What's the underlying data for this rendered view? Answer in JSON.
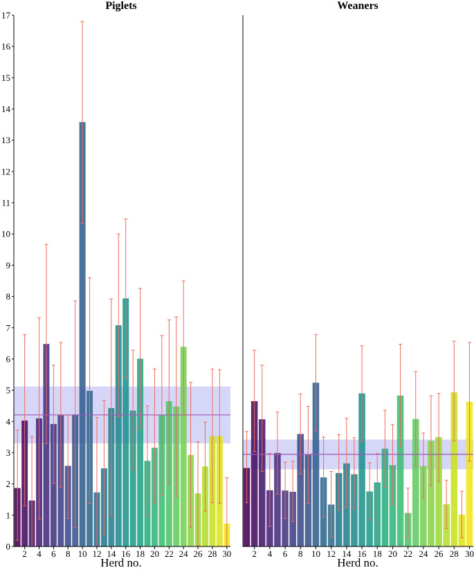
{
  "chart_data": [
    {
      "type": "bar",
      "title": "Piglets",
      "xlabel": "Herd no.",
      "ylabel": "",
      "ylim": [
        0,
        17
      ],
      "yticks": [
        0,
        1,
        2,
        3,
        4,
        5,
        6,
        7,
        8,
        9,
        10,
        11,
        12,
        13,
        14,
        15,
        16,
        17
      ],
      "x": [
        1,
        2,
        3,
        4,
        5,
        6,
        7,
        8,
        9,
        10,
        11,
        12,
        13,
        14,
        15,
        16,
        17,
        18,
        19,
        20,
        21,
        22,
        23,
        24,
        25,
        26,
        27,
        28,
        29,
        30
      ],
      "xticks": [
        2,
        4,
        6,
        8,
        10,
        12,
        14,
        16,
        18,
        20,
        22,
        24,
        26,
        28,
        30
      ],
      "values": [
        1.87,
        4.03,
        1.47,
        4.1,
        6.48,
        3.92,
        4.2,
        2.58,
        4.22,
        13.58,
        4.98,
        1.73,
        2.5,
        4.43,
        7.08,
        7.94,
        4.35,
        6.01,
        2.74,
        3.16,
        4.2,
        4.65,
        4.48,
        6.39,
        2.93,
        1.7,
        2.56,
        3.53,
        3.53,
        0.73
      ],
      "err_low": [
        0.2,
        1.3,
        0.0,
        0.88,
        3.3,
        2.02,
        1.9,
        0.9,
        0.6,
        10.33,
        1.38,
        0.0,
        0.37,
        0.98,
        4.15,
        5.4,
        2.47,
        3.78,
        0.98,
        1.37,
        1.65,
        2.0,
        1.6,
        4.22,
        0.6,
        0.04,
        1.13,
        1.4,
        1.38,
        0.0
      ],
      "err_high": [
        3.72,
        6.78,
        3.52,
        7.32,
        9.67,
        5.8,
        6.53,
        4.2,
        7.86,
        16.8,
        8.6,
        4.13,
        4.68,
        7.92,
        10.0,
        10.48,
        6.28,
        8.26,
        4.5,
        5.68,
        6.75,
        7.25,
        7.35,
        8.5,
        5.25,
        3.35,
        3.98,
        5.68,
        5.66,
        2.2
      ],
      "mean_line": 4.21,
      "mean_band": [
        3.3,
        5.12
      ],
      "colors": [
        "#440154",
        "#450c60",
        "#46176b",
        "#472376",
        "#462d7f",
        "#433680",
        "#3f4087",
        "#3b4a8b",
        "#36548c",
        "#325e8d",
        "#2d688e",
        "#2a718e",
        "#26798e",
        "#23828e",
        "#218a8d",
        "#1f938c",
        "#1f9b8a",
        "#22a385",
        "#28ae80",
        "#31b67b",
        "#3ebd73",
        "#50c46a",
        "#63cb5f",
        "#76d054",
        "#8ad447",
        "#9ed93a",
        "#b4dd2c",
        "#cae11f",
        "#dee318",
        "#f0e51c"
      ]
    },
    {
      "type": "bar",
      "title": "Weaners",
      "xlabel": "Herd no.",
      "ylabel": "",
      "ylim": [
        0,
        17
      ],
      "x": [
        1,
        2,
        3,
        4,
        5,
        6,
        7,
        8,
        9,
        10,
        11,
        12,
        13,
        14,
        15,
        16,
        17,
        18,
        19,
        20,
        21,
        22,
        23,
        24,
        25,
        26,
        27,
        28,
        29,
        30
      ],
      "xticks": [
        2,
        4,
        6,
        8,
        10,
        12,
        14,
        16,
        18,
        20,
        22,
        24,
        26,
        28,
        30
      ],
      "values": [
        2.51,
        4.65,
        4.07,
        1.8,
        2.99,
        1.79,
        1.75,
        3.6,
        2.93,
        5.24,
        2.21,
        1.34,
        2.35,
        2.66,
        2.31,
        4.9,
        1.76,
        2.05,
        3.13,
        2.6,
        4.83,
        1.07,
        4.08,
        2.57,
        3.38,
        3.5,
        1.35,
        4.93,
        1.02,
        4.63
      ],
      "err_low": [
        1.4,
        3.04,
        2.4,
        0.65,
        1.68,
        0.9,
        0.8,
        2.32,
        1.38,
        3.7,
        0.95,
        0.3,
        1.17,
        1.25,
        1.2,
        3.38,
        0.85,
        0.0,
        1.9,
        1.33,
        3.2,
        0.3,
        2.57,
        1.55,
        1.95,
        2.08,
        0.58,
        3.38,
        0.28,
        2.73
      ],
      "err_high": [
        3.68,
        6.28,
        5.8,
        2.98,
        4.3,
        2.7,
        2.73,
        4.88,
        4.48,
        6.78,
        3.5,
        2.4,
        3.58,
        4.1,
        3.48,
        6.42,
        2.68,
        2.98,
        4.36,
        3.9,
        6.47,
        1.87,
        5.6,
        3.63,
        4.82,
        4.9,
        2.12,
        6.57,
        1.77,
        6.53
      ],
      "mean_line": 2.95,
      "mean_band": [
        2.47,
        3.42
      ],
      "colors": [
        "#440154",
        "#450c60",
        "#46176b",
        "#472376",
        "#462d7f",
        "#433680",
        "#3f4087",
        "#3b4a8b",
        "#36548c",
        "#325e8d",
        "#2d688e",
        "#2a718e",
        "#26798e",
        "#23828e",
        "#218a8d",
        "#1f938c",
        "#1f9b8a",
        "#22a385",
        "#28ae80",
        "#31b67b",
        "#3ebd73",
        "#50c46a",
        "#63cb5f",
        "#76d054",
        "#8ad447",
        "#9ed93a",
        "#b4dd2c",
        "#cae11f",
        "#dee318",
        "#f0e51c"
      ]
    }
  ],
  "style": {
    "error_bar_color": "#f06a5a",
    "mean_line_color": "#9b59b6",
    "mean_band_color": "#c8c8f5",
    "axis_color": "#000000"
  }
}
